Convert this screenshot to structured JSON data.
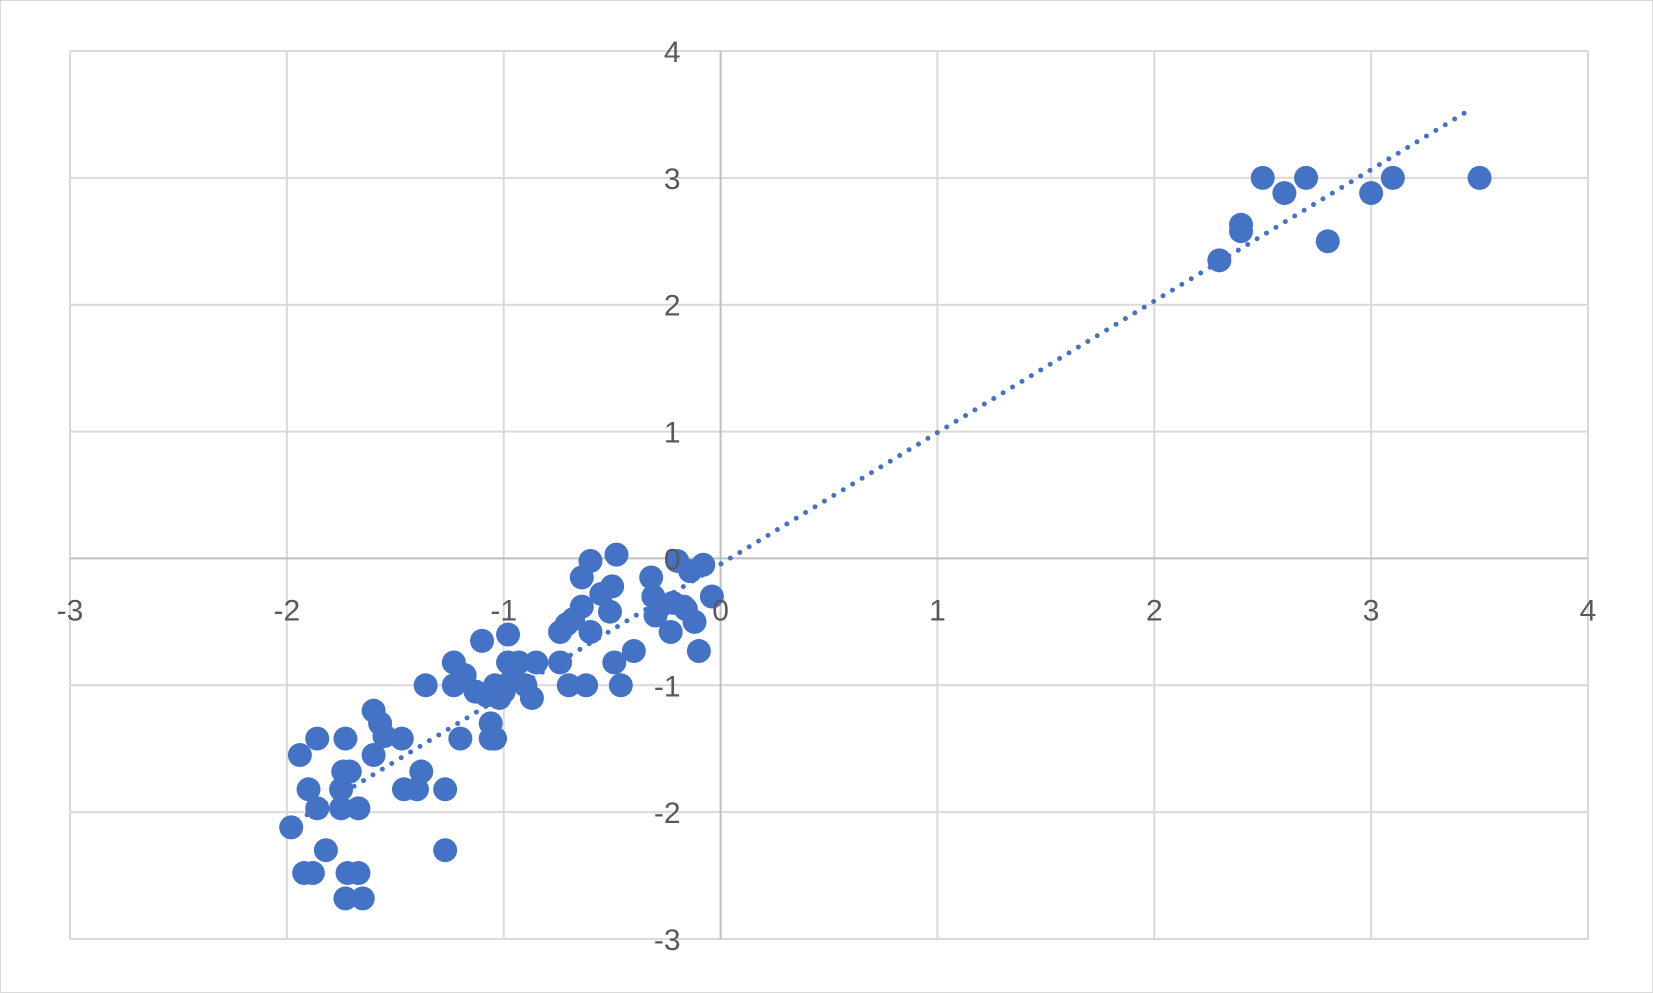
{
  "chart_data": {
    "type": "scatter",
    "title": "",
    "xlabel": "",
    "ylabel": "",
    "xlim": [
      -3,
      4
    ],
    "ylim": [
      -3,
      4
    ],
    "x_ticks": [
      -3,
      -2,
      -1,
      0,
      1,
      2,
      3,
      4
    ],
    "y_ticks": [
      -3,
      -2,
      -1,
      0,
      1,
      2,
      3,
      4
    ],
    "grid": true,
    "legend": "none",
    "marker_color": "#4472C4",
    "gridline_color": "#d9d9d9",
    "axis_color": "#bfbfbf",
    "tick_label_color": "#595959",
    "trendline": {
      "type": "linear",
      "style": "dotted",
      "color": "#4472C4",
      "x_start": -1.95,
      "x_end": 3.45
    },
    "series": [
      {
        "points": [
          [
            -1.98,
            -2.12
          ],
          [
            -1.94,
            -1.55
          ],
          [
            -1.92,
            -2.48
          ],
          [
            -1.9,
            -1.82
          ],
          [
            -1.88,
            -2.48
          ],
          [
            -1.86,
            -1.42
          ],
          [
            -1.86,
            -1.97
          ],
          [
            -1.82,
            -2.3
          ],
          [
            -1.73,
            -1.42
          ],
          [
            -1.74,
            -1.68
          ],
          [
            -1.75,
            -1.82
          ],
          [
            -1.75,
            -1.97
          ],
          [
            -1.71,
            -1.68
          ],
          [
            -1.73,
            -2.68
          ],
          [
            -1.72,
            -2.48
          ],
          [
            -1.67,
            -1.97
          ],
          [
            -1.67,
            -2.48
          ],
          [
            -1.65,
            -2.68
          ],
          [
            -1.6,
            -1.2
          ],
          [
            -1.6,
            -1.55
          ],
          [
            -1.57,
            -1.3
          ],
          [
            -1.55,
            -1.4
          ],
          [
            -1.47,
            -1.42
          ],
          [
            -1.46,
            -1.82
          ],
          [
            -1.4,
            -1.82
          ],
          [
            -1.38,
            -1.68
          ],
          [
            -1.36,
            -1.0
          ],
          [
            -1.27,
            -1.82
          ],
          [
            -1.27,
            -2.3
          ],
          [
            -1.23,
            -0.82
          ],
          [
            -1.23,
            -1.0
          ],
          [
            -1.2,
            -1.42
          ],
          [
            -1.18,
            -0.92
          ],
          [
            -1.13,
            -1.05
          ],
          [
            -1.1,
            -0.65
          ],
          [
            -1.08,
            -1.08
          ],
          [
            -1.06,
            -1.3
          ],
          [
            -1.06,
            -1.42
          ],
          [
            -1.04,
            -1.0
          ],
          [
            -1.04,
            -1.42
          ],
          [
            -1.02,
            -1.1
          ],
          [
            -1.0,
            -1.05
          ],
          [
            -0.98,
            -0.6
          ],
          [
            -0.98,
            -0.82
          ],
          [
            -0.96,
            -0.95
          ],
          [
            -0.93,
            -0.82
          ],
          [
            -0.9,
            -1.0
          ],
          [
            -0.87,
            -1.1
          ],
          [
            -0.85,
            -0.82
          ],
          [
            -0.74,
            -0.82
          ],
          [
            -0.74,
            -0.58
          ],
          [
            -0.71,
            -0.52
          ],
          [
            -0.7,
            -1.0
          ],
          [
            -0.68,
            -0.48
          ],
          [
            -0.64,
            -0.38
          ],
          [
            -0.64,
            -0.15
          ],
          [
            -0.62,
            -1.0
          ],
          [
            -0.6,
            -0.02
          ],
          [
            -0.6,
            -0.58
          ],
          [
            -0.55,
            -0.28
          ],
          [
            -0.51,
            -0.42
          ],
          [
            -0.5,
            -0.22
          ],
          [
            -0.49,
            -0.82
          ],
          [
            -0.48,
            0.03
          ],
          [
            -0.46,
            -1.0
          ],
          [
            -0.4,
            -0.73
          ],
          [
            -0.32,
            -0.15
          ],
          [
            -0.31,
            -0.3
          ],
          [
            -0.3,
            -0.45
          ],
          [
            -0.28,
            -0.38
          ],
          [
            -0.23,
            -0.58
          ],
          [
            -0.22,
            -0.35
          ],
          [
            -0.2,
            -0.02
          ],
          [
            -0.17,
            -0.38
          ],
          [
            -0.16,
            -0.4
          ],
          [
            -0.14,
            -0.1
          ],
          [
            -0.12,
            -0.5
          ],
          [
            -0.1,
            -0.73
          ],
          [
            -0.08,
            -0.05
          ],
          [
            -0.04,
            -0.3
          ],
          [
            2.3,
            2.35
          ],
          [
            2.4,
            2.58
          ],
          [
            2.4,
            2.63
          ],
          [
            2.5,
            3.0
          ],
          [
            2.6,
            2.88
          ],
          [
            2.7,
            3.0
          ],
          [
            2.8,
            2.5
          ],
          [
            3.0,
            2.88
          ],
          [
            3.1,
            3.0
          ],
          [
            3.5,
            3.0
          ]
        ]
      }
    ]
  }
}
